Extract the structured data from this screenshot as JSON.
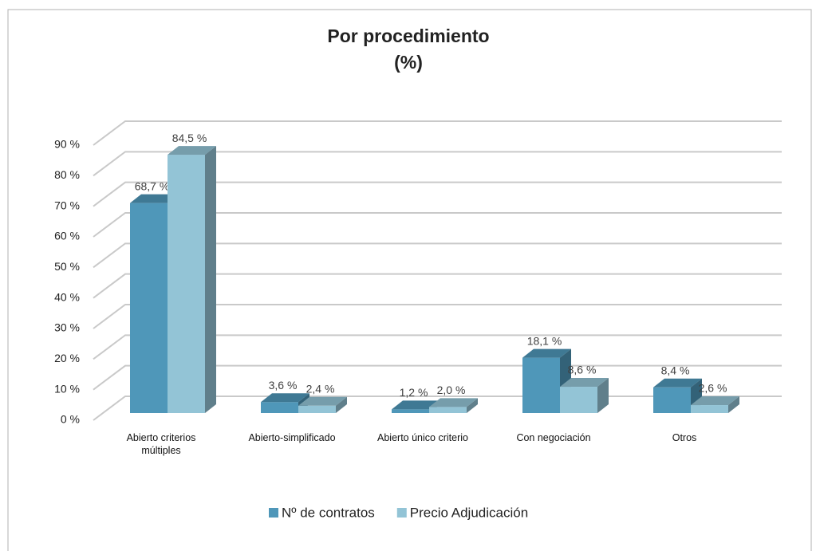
{
  "chart_data": {
    "type": "bar3d",
    "title": "Por procedimiento",
    "subtitle": "(%)",
    "categories": [
      "Abierto criterios múltiples",
      "Abierto-simplificado",
      "Abierto único criterio",
      "Con negociación",
      "Otros"
    ],
    "series": [
      {
        "name": "Nº de contratos",
        "color": "#4f97b9",
        "values": [
          68.7,
          3.6,
          1.2,
          18.1,
          8.4
        ],
        "value_labels": [
          "68,7 %",
          "3,6 %",
          "1,2 %",
          "18,1 %",
          "8,4 %"
        ]
      },
      {
        "name": "Precio Adjudicación",
        "color": "#93c4d6",
        "values": [
          84.5,
          2.4,
          2.0,
          8.6,
          2.6
        ],
        "value_labels": [
          "84,5 %",
          "2,4 %",
          "2,0 %",
          "8,6 %",
          "2,6 %"
        ]
      }
    ],
    "ylim": [
      0,
      90
    ],
    "yticks": [
      {
        "value": 0,
        "label": "0 %"
      },
      {
        "value": 10,
        "label": "10 %"
      },
      {
        "value": 20,
        "label": "20 %"
      },
      {
        "value": 30,
        "label": "30 %"
      },
      {
        "value": 40,
        "label": "40 %"
      },
      {
        "value": 50,
        "label": "50 %"
      },
      {
        "value": 60,
        "label": "60 %"
      },
      {
        "value": 70,
        "label": "70 %"
      },
      {
        "value": 80,
        "label": "80 %"
      },
      {
        "value": 90,
        "label": "90 %"
      }
    ],
    "grid": true,
    "legend": "bottom"
  }
}
